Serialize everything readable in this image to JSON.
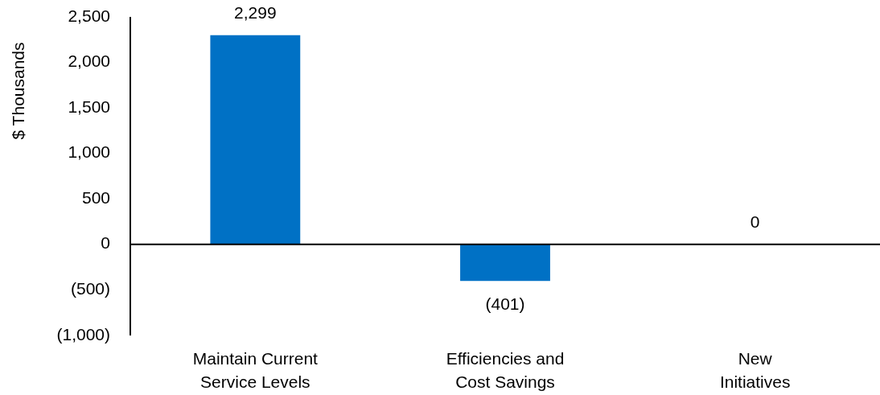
{
  "chart_data": {
    "type": "bar",
    "ylabel": "$ Thousands",
    "categories": [
      "Maintain Current Service Levels",
      "Efficiencies and Cost Savings",
      "New Initiatives"
    ],
    "values": [
      2299,
      -401,
      0
    ],
    "value_labels": [
      "2,299",
      "(401)",
      "0"
    ],
    "color": "#0071c5",
    "ylim": [
      -1000,
      2500
    ],
    "yticks": [
      {
        "value": -1000,
        "label": "(1,000)"
      },
      {
        "value": -500,
        "label": "(500)"
      },
      0,
      500,
      {
        "value": 1000,
        "label": "1,000"
      },
      {
        "value": 1500,
        "label": "1,500"
      },
      {
        "value": 2000,
        "label": "2,000"
      },
      {
        "value": 2500,
        "label": "2,500"
      }
    ]
  }
}
